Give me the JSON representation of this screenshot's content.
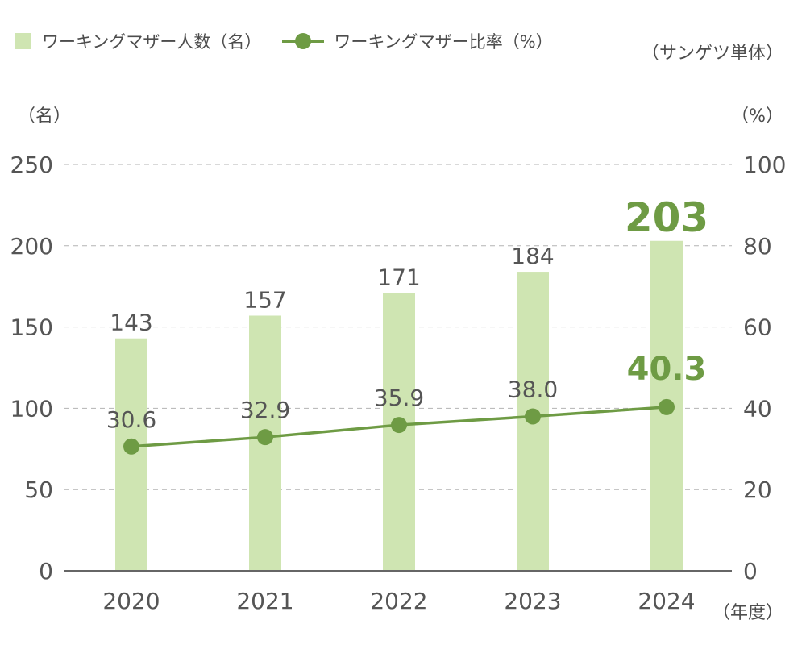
{
  "legend": {
    "bar_label": "ワーキングマザー人数（名）",
    "line_label": "ワーキングマザー比率（%）"
  },
  "notes": {
    "scope": "（サンゲツ単体）",
    "left_unit": "（名）",
    "right_unit": "（%）",
    "x_unit": "（年度）"
  },
  "colors": {
    "bar": "#cfe5b2",
    "line": "#6e9b44",
    "highlight": "#6e9b44",
    "text": "#555555",
    "grid": "#b3b3b3"
  },
  "chart_data": {
    "type": "bar+line",
    "categories": [
      "2020",
      "2021",
      "2022",
      "2023",
      "2024"
    ],
    "series": [
      {
        "name": "ワーキングマザー人数（名）",
        "type": "bar",
        "axis": "left",
        "values": [
          143,
          157,
          171,
          184,
          203
        ],
        "labels": [
          "143",
          "157",
          "171",
          "184",
          "203"
        ]
      },
      {
        "name": "ワーキングマザー比率（%）",
        "type": "line",
        "axis": "right",
        "values": [
          30.6,
          32.9,
          35.9,
          38.0,
          40.3
        ],
        "labels": [
          "30.6",
          "32.9",
          "35.9",
          "38.0",
          "40.3"
        ]
      }
    ],
    "left_axis": {
      "ylim": [
        0,
        250
      ],
      "ticks": [
        0,
        50,
        100,
        150,
        200,
        250
      ],
      "tick_labels": [
        "0",
        "50",
        "100",
        "150",
        "200",
        "250"
      ]
    },
    "right_axis": {
      "ylim": [
        0,
        100
      ],
      "ticks": [
        0,
        20,
        40,
        60,
        80,
        100
      ],
      "tick_labels": [
        "0",
        "20",
        "40",
        "60",
        "80",
        "100"
      ]
    },
    "grid": "horizontal-dashed",
    "legend_position": "top-left",
    "highlight_index": 4
  }
}
